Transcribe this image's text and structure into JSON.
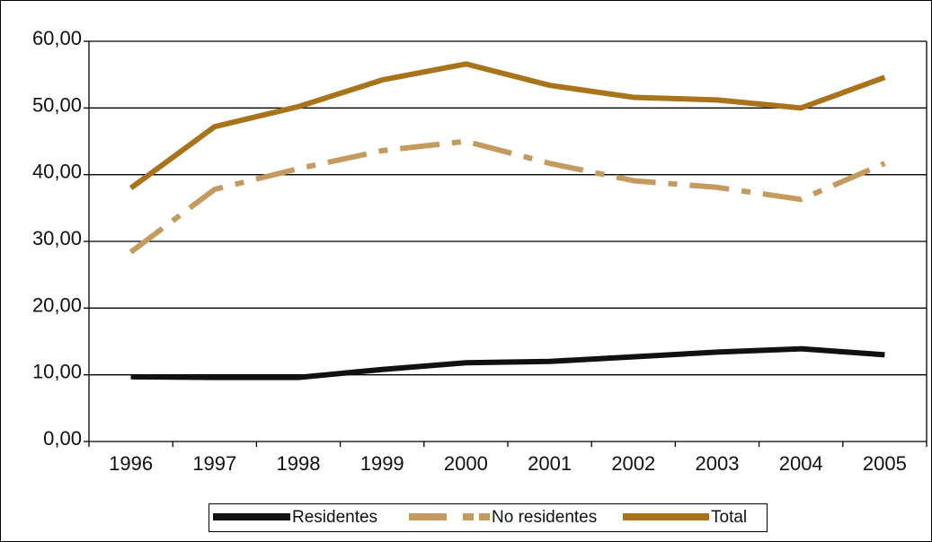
{
  "chart_data": {
    "type": "line",
    "categories": [
      "1996",
      "1997",
      "1998",
      "1999",
      "2000",
      "2001",
      "2002",
      "2003",
      "2004",
      "2005"
    ],
    "series": [
      {
        "name": "Residentes",
        "color": "#111111",
        "dash": "solid",
        "values": [
          9.7,
          9.6,
          9.6,
          10.8,
          11.8,
          12.0,
          12.7,
          13.4,
          13.9,
          13.0
        ]
      },
      {
        "name": "No residentes",
        "color": "#c49a5e",
        "dash": "dashdot",
        "values": [
          28.4,
          37.8,
          40.9,
          43.6,
          45.0,
          41.7,
          39.1,
          38.1,
          36.3,
          41.7
        ]
      },
      {
        "name": "Total",
        "color": "#a8731a",
        "dash": "solid",
        "values": [
          38.0,
          47.2,
          50.2,
          54.2,
          56.6,
          53.4,
          51.6,
          51.2,
          50.0,
          54.6
        ]
      }
    ],
    "y_ticks": [
      "0,00",
      "10,00",
      "20,00",
      "30,00",
      "40,00",
      "50,00",
      "60,00"
    ],
    "ylim": [
      0,
      60
    ],
    "grid": "horizontal",
    "legend": "bottom"
  },
  "legend": {
    "items": [
      {
        "label": "Residentes"
      },
      {
        "label": "No residentes"
      },
      {
        "label": "Total"
      }
    ]
  }
}
